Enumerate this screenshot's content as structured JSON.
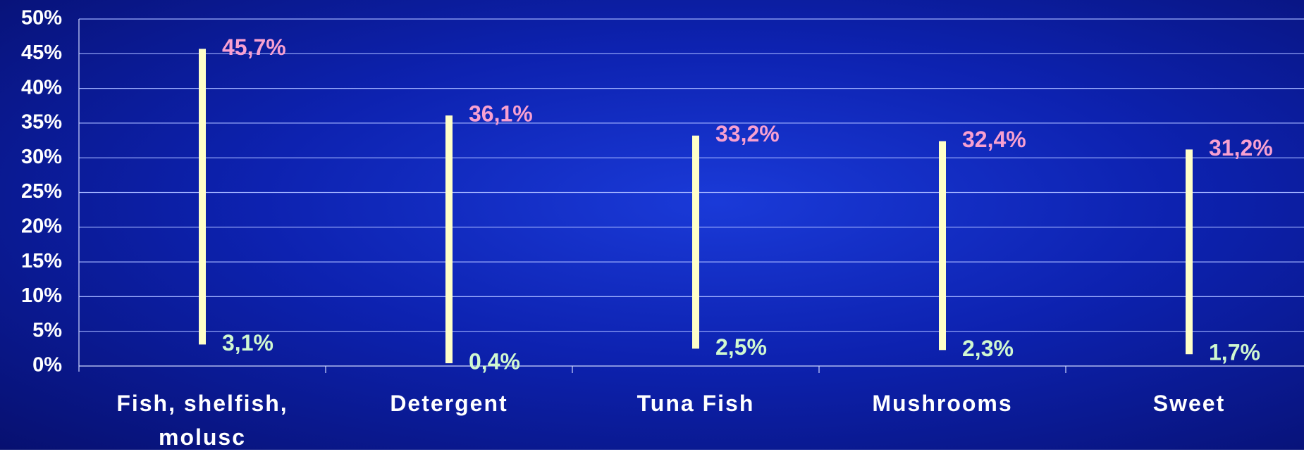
{
  "chart_data": {
    "type": "range",
    "categories": [
      "Fish, shelfish, molusc",
      "Detergent",
      "Tuna Fish",
      "Mushrooms",
      "Sweet"
    ],
    "series": [
      {
        "color": "#f8a0d0",
        "values": [
          45.7,
          36.1,
          33.2,
          32.4,
          31.2
        ],
        "value_labels": [
          "45,7%",
          "36,1%",
          "33,2%",
          "32,4%",
          "31,2%"
        ]
      },
      {
        "color": "#d0f8d0",
        "values": [
          3.1,
          0.4,
          2.5,
          2.3,
          1.7
        ],
        "value_labels": [
          "3,1%",
          "0,4%",
          "2,5%",
          "2,3%",
          "1,7%"
        ]
      }
    ],
    "bar_color": "#ffffc8",
    "ylim": [
      0,
      50
    ],
    "yticks": [
      {
        "value": 0,
        "label": "0%"
      },
      {
        "value": 5,
        "label": "5%"
      },
      {
        "value": 10,
        "label": "10%"
      },
      {
        "value": 15,
        "label": "15%"
      },
      {
        "value": 20,
        "label": "20%"
      },
      {
        "value": 25,
        "label": "25%"
      },
      {
        "value": 30,
        "label": "30%"
      },
      {
        "value": 35,
        "label": "35%"
      },
      {
        "value": 40,
        "label": "40%"
      },
      {
        "value": 45,
        "label": "45%"
      },
      {
        "value": 50,
        "label": "50%"
      }
    ],
    "grid": true
  }
}
